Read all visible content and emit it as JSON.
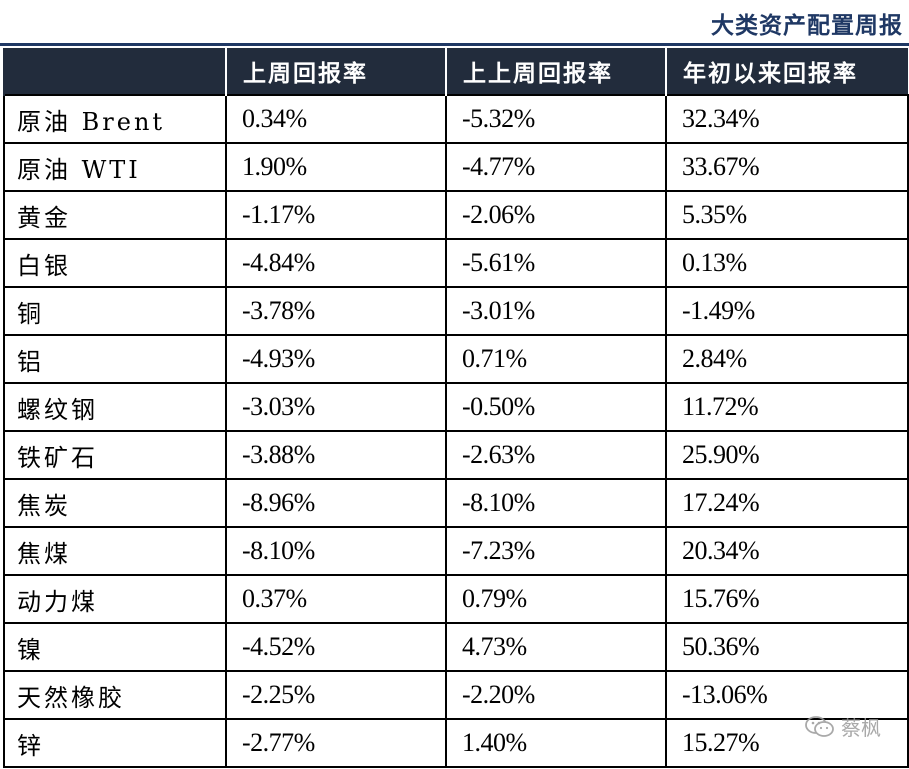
{
  "report": {
    "title": "大类资产配置周报"
  },
  "table": {
    "headers": [
      "",
      "上周回报率",
      "上上周回报率",
      "年初以来回报率"
    ],
    "rows": [
      {
        "asset": "原油 Brent",
        "last_week": "0.34%",
        "week_before": "-5.32%",
        "ytd": "32.34%"
      },
      {
        "asset": "原油 WTI",
        "last_week": "1.90%",
        "week_before": "-4.77%",
        "ytd": "33.67%"
      },
      {
        "asset": "黄金",
        "last_week": "-1.17%",
        "week_before": "-2.06%",
        "ytd": "5.35%"
      },
      {
        "asset": "白银",
        "last_week": "-4.84%",
        "week_before": "-5.61%",
        "ytd": "0.13%"
      },
      {
        "asset": "铜",
        "last_week": "-3.78%",
        "week_before": "-3.01%",
        "ytd": "-1.49%"
      },
      {
        "asset": "铝",
        "last_week": "-4.93%",
        "week_before": "0.71%",
        "ytd": "2.84%"
      },
      {
        "asset": "螺纹钢",
        "last_week": "-3.03%",
        "week_before": "-0.50%",
        "ytd": "11.72%"
      },
      {
        "asset": "铁矿石",
        "last_week": "-3.88%",
        "week_before": "-2.63%",
        "ytd": "25.90%"
      },
      {
        "asset": "焦炭",
        "last_week": "-8.96%",
        "week_before": "-8.10%",
        "ytd": "17.24%"
      },
      {
        "asset": "焦煤",
        "last_week": "-8.10%",
        "week_before": "-7.23%",
        "ytd": "20.34%"
      },
      {
        "asset": "动力煤",
        "last_week": "0.37%",
        "week_before": "0.79%",
        "ytd": "15.76%"
      },
      {
        "asset": "镍",
        "last_week": "-4.52%",
        "week_before": "4.73%",
        "ytd": "50.36%"
      },
      {
        "asset": "天然橡胶",
        "last_week": "-2.25%",
        "week_before": "-2.20%",
        "ytd": "-13.06%"
      },
      {
        "asset": "锌",
        "last_week": "-2.77%",
        "week_before": "1.40%",
        "ytd": "15.27%"
      }
    ]
  },
  "watermark": {
    "icon": "wechat-icon",
    "text": "蔡枫"
  },
  "colors": {
    "title": "#1f3864",
    "header_bg": "#222c3c",
    "header_text": "#ffffff",
    "grid": "#000000"
  }
}
